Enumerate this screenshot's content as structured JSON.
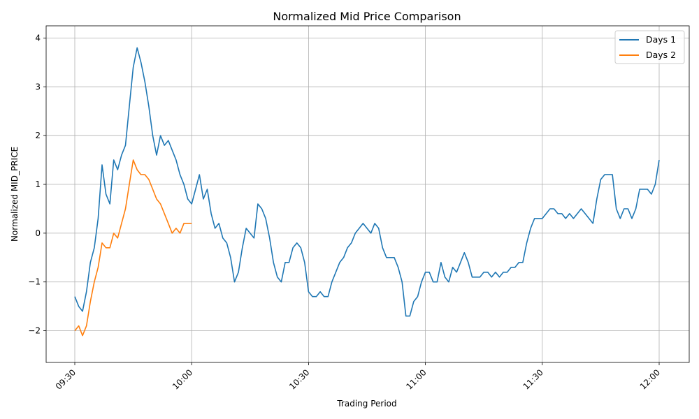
{
  "chart_data": {
    "type": "line",
    "title": "Normalized Mid Price Comparison",
    "xlabel": "Trading Period",
    "ylabel": "Normalized MID_PRICE",
    "x_range": [
      "09:30",
      "12:00"
    ],
    "ylim": [
      -2.65,
      4.25
    ],
    "x_ticks": [
      "09:30",
      "10:00",
      "10:30",
      "11:00",
      "11:30",
      "12:00"
    ],
    "y_ticks": [
      -2,
      -1,
      0,
      1,
      2,
      3,
      4
    ],
    "grid": true,
    "legend_position": "top-right",
    "series": [
      {
        "name": "Days 1",
        "color": "#1f77b4",
        "points": [
          [
            "09:30",
            -1.3
          ],
          [
            "09:31",
            -1.5
          ],
          [
            "09:32",
            -1.6
          ],
          [
            "09:33",
            -1.2
          ],
          [
            "09:34",
            -0.6
          ],
          [
            "09:35",
            -0.3
          ],
          [
            "09:36",
            0.3
          ],
          [
            "09:37",
            1.4
          ],
          [
            "09:38",
            0.8
          ],
          [
            "09:39",
            0.6
          ],
          [
            "09:40",
            1.5
          ],
          [
            "09:41",
            1.3
          ],
          [
            "09:42",
            1.6
          ],
          [
            "09:43",
            1.8
          ],
          [
            "09:44",
            2.6
          ],
          [
            "09:45",
            3.4
          ],
          [
            "09:46",
            3.8
          ],
          [
            "09:47",
            3.5
          ],
          [
            "09:48",
            3.1
          ],
          [
            "09:49",
            2.6
          ],
          [
            "09:50",
            2.0
          ],
          [
            "09:51",
            1.6
          ],
          [
            "09:52",
            2.0
          ],
          [
            "09:53",
            1.8
          ],
          [
            "09:54",
            1.9
          ],
          [
            "09:55",
            1.7
          ],
          [
            "09:56",
            1.5
          ],
          [
            "09:57",
            1.2
          ],
          [
            "09:58",
            1.0
          ],
          [
            "09:59",
            0.7
          ],
          [
            "10:00",
            0.6
          ],
          [
            "10:01",
            0.9
          ],
          [
            "10:02",
            1.2
          ],
          [
            "10:03",
            0.7
          ],
          [
            "10:04",
            0.9
          ],
          [
            "10:05",
            0.4
          ],
          [
            "10:06",
            0.1
          ],
          [
            "10:07",
            0.2
          ],
          [
            "10:08",
            -0.1
          ],
          [
            "10:09",
            -0.2
          ],
          [
            "10:10",
            -0.5
          ],
          [
            "10:11",
            -1.0
          ],
          [
            "10:12",
            -0.8
          ],
          [
            "10:13",
            -0.3
          ],
          [
            "10:14",
            0.1
          ],
          [
            "10:15",
            0.0
          ],
          [
            "10:16",
            -0.1
          ],
          [
            "10:17",
            0.6
          ],
          [
            "10:18",
            0.5
          ],
          [
            "10:19",
            0.3
          ],
          [
            "10:20",
            -0.1
          ],
          [
            "10:21",
            -0.6
          ],
          [
            "10:22",
            -0.9
          ],
          [
            "10:23",
            -1.0
          ],
          [
            "10:24",
            -0.6
          ],
          [
            "10:25",
            -0.6
          ],
          [
            "10:26",
            -0.3
          ],
          [
            "10:27",
            -0.2
          ],
          [
            "10:28",
            -0.3
          ],
          [
            "10:29",
            -0.6
          ],
          [
            "10:30",
            -1.2
          ],
          [
            "10:31",
            -1.3
          ],
          [
            "10:32",
            -1.3
          ],
          [
            "10:33",
            -1.2
          ],
          [
            "10:34",
            -1.3
          ],
          [
            "10:35",
            -1.3
          ],
          [
            "10:36",
            -1.0
          ],
          [
            "10:37",
            -0.8
          ],
          [
            "10:38",
            -0.6
          ],
          [
            "10:39",
            -0.5
          ],
          [
            "10:40",
            -0.3
          ],
          [
            "10:41",
            -0.2
          ],
          [
            "10:42",
            0.0
          ],
          [
            "10:43",
            0.1
          ],
          [
            "10:44",
            0.2
          ],
          [
            "10:45",
            0.1
          ],
          [
            "10:46",
            0.0
          ],
          [
            "10:47",
            0.2
          ],
          [
            "10:48",
            0.1
          ],
          [
            "10:49",
            -0.3
          ],
          [
            "10:50",
            -0.5
          ],
          [
            "10:51",
            -0.5
          ],
          [
            "10:52",
            -0.5
          ],
          [
            "10:53",
            -0.7
          ],
          [
            "10:54",
            -1.0
          ],
          [
            "10:55",
            -1.7
          ],
          [
            "10:56",
            -1.7
          ],
          [
            "10:57",
            -1.4
          ],
          [
            "10:58",
            -1.3
          ],
          [
            "10:59",
            -1.0
          ],
          [
            "11:00",
            -0.8
          ],
          [
            "11:01",
            -0.8
          ],
          [
            "11:02",
            -1.0
          ],
          [
            "11:03",
            -1.0
          ],
          [
            "11:04",
            -0.6
          ],
          [
            "11:05",
            -0.9
          ],
          [
            "11:06",
            -1.0
          ],
          [
            "11:07",
            -0.7
          ],
          [
            "11:08",
            -0.8
          ],
          [
            "11:09",
            -0.6
          ],
          [
            "11:10",
            -0.4
          ],
          [
            "11:11",
            -0.6
          ],
          [
            "11:12",
            -0.9
          ],
          [
            "11:13",
            -0.9
          ],
          [
            "11:14",
            -0.9
          ],
          [
            "11:15",
            -0.8
          ],
          [
            "11:16",
            -0.8
          ],
          [
            "11:17",
            -0.9
          ],
          [
            "11:18",
            -0.8
          ],
          [
            "11:19",
            -0.9
          ],
          [
            "11:20",
            -0.8
          ],
          [
            "11:21",
            -0.8
          ],
          [
            "11:22",
            -0.7
          ],
          [
            "11:23",
            -0.7
          ],
          [
            "11:24",
            -0.6
          ],
          [
            "11:25",
            -0.6
          ],
          [
            "11:26",
            -0.2
          ],
          [
            "11:27",
            0.1
          ],
          [
            "11:28",
            0.3
          ],
          [
            "11:29",
            0.3
          ],
          [
            "11:30",
            0.3
          ],
          [
            "11:31",
            0.4
          ],
          [
            "11:32",
            0.5
          ],
          [
            "11:33",
            0.5
          ],
          [
            "11:34",
            0.4
          ],
          [
            "11:35",
            0.4
          ],
          [
            "11:36",
            0.3
          ],
          [
            "11:37",
            0.4
          ],
          [
            "11:38",
            0.3
          ],
          [
            "11:39",
            0.4
          ],
          [
            "11:40",
            0.5
          ],
          [
            "11:41",
            0.4
          ],
          [
            "11:42",
            0.3
          ],
          [
            "11:43",
            0.2
          ],
          [
            "11:44",
            0.7
          ],
          [
            "11:45",
            1.1
          ],
          [
            "11:46",
            1.2
          ],
          [
            "11:47",
            1.2
          ],
          [
            "11:48",
            1.2
          ],
          [
            "11:49",
            0.5
          ],
          [
            "11:50",
            0.3
          ],
          [
            "11:51",
            0.5
          ],
          [
            "11:52",
            0.5
          ],
          [
            "11:53",
            0.3
          ],
          [
            "11:54",
            0.5
          ],
          [
            "11:55",
            0.9
          ],
          [
            "11:56",
            0.9
          ],
          [
            "11:57",
            0.9
          ],
          [
            "11:58",
            0.8
          ],
          [
            "11:59",
            1.0
          ],
          [
            "12:00",
            1.5
          ]
        ]
      },
      {
        "name": "Days 2",
        "color": "#ff7f0e",
        "points": [
          [
            "09:30",
            -2.0
          ],
          [
            "09:31",
            -1.9
          ],
          [
            "09:32",
            -2.1
          ],
          [
            "09:33",
            -1.9
          ],
          [
            "09:34",
            -1.4
          ],
          [
            "09:35",
            -1.0
          ],
          [
            "09:36",
            -0.7
          ],
          [
            "09:37",
            -0.2
          ],
          [
            "09:38",
            -0.3
          ],
          [
            "09:39",
            -0.3
          ],
          [
            "09:40",
            0.0
          ],
          [
            "09:41",
            -0.1
          ],
          [
            "09:42",
            0.2
          ],
          [
            "09:43",
            0.5
          ],
          [
            "09:44",
            1.0
          ],
          [
            "09:45",
            1.5
          ],
          [
            "09:46",
            1.3
          ],
          [
            "09:47",
            1.2
          ],
          [
            "09:48",
            1.2
          ],
          [
            "09:49",
            1.1
          ],
          [
            "09:50",
            0.9
          ],
          [
            "09:51",
            0.7
          ],
          [
            "09:52",
            0.6
          ],
          [
            "09:53",
            0.4
          ],
          [
            "09:54",
            0.2
          ],
          [
            "09:55",
            0.0
          ],
          [
            "09:56",
            0.1
          ],
          [
            "09:57",
            0.0
          ],
          [
            "09:58",
            0.2
          ],
          [
            "09:59",
            0.2
          ],
          [
            "10:00",
            0.2
          ]
        ]
      }
    ]
  }
}
